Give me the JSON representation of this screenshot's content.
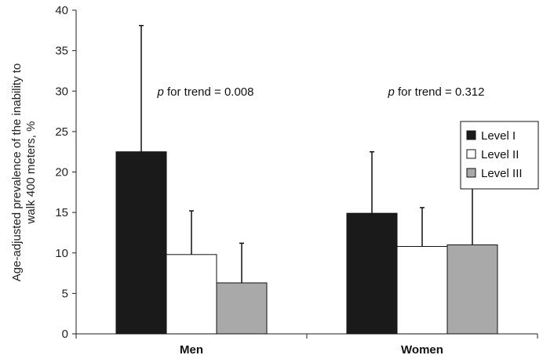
{
  "chart_data": {
    "type": "bar",
    "ylabel_lines": [
      "Age-adjusted prevalence of the inability to",
      "walk 400 meters, %"
    ],
    "categories": [
      "Men",
      "Women"
    ],
    "ylim": [
      0,
      40
    ],
    "yticks": [
      0,
      5,
      10,
      15,
      20,
      25,
      30,
      35,
      40
    ],
    "series": [
      {
        "name": "Level I",
        "color": "#1a1a1a",
        "values": [
          22.5,
          14.9
        ],
        "error_upper": [
          38.1,
          22.5
        ]
      },
      {
        "name": "Level II",
        "color": "#ffffff",
        "values": [
          9.8,
          10.8
        ],
        "error_upper": [
          15.2,
          15.6
        ]
      },
      {
        "name": "Level III",
        "color": "#a9a9a9",
        "values": [
          6.3,
          11.0
        ],
        "error_upper": [
          11.2,
          19.7
        ]
      }
    ],
    "annotations": [
      {
        "italic": "p",
        "text": " for trend = 0.008",
        "category": "Men"
      },
      {
        "italic": "p",
        "text": " for trend = 0.312",
        "category": "Women"
      }
    ],
    "legend_position": "right",
    "grid": false
  }
}
